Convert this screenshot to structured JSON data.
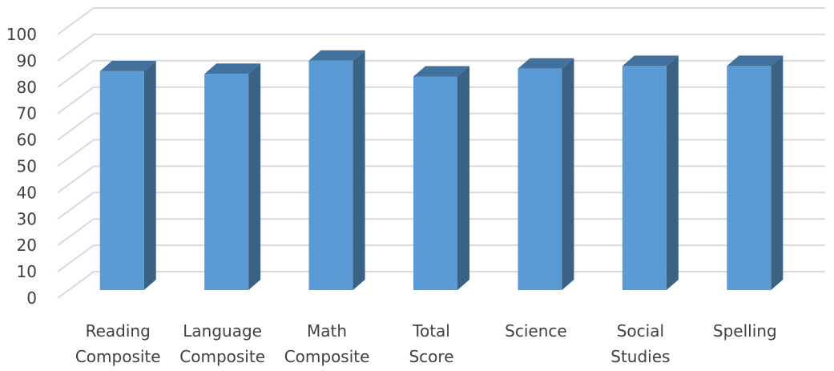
{
  "chart_data": {
    "type": "bar",
    "categories": [
      [
        "Reading",
        "Composite"
      ],
      [
        "Language",
        "Composite"
      ],
      [
        "Math",
        "Composite"
      ],
      [
        "Total",
        "Score"
      ],
      [
        "Science"
      ],
      [
        "Social",
        "Studies"
      ],
      [
        "Spelling"
      ]
    ],
    "values": [
      83,
      82,
      87,
      81,
      84,
      85,
      85
    ],
    "title": "",
    "xlabel": "",
    "ylabel": "",
    "ylim": [
      0,
      100
    ],
    "yticks": [
      "0",
      "10",
      "20",
      "30",
      "40",
      "50",
      "60",
      "70",
      "80",
      "90",
      "100"
    ],
    "grid": true,
    "legend": "none",
    "style": "3d-column",
    "colors": {
      "bar_front": "#5B9BD5",
      "bar_side": "#3A6285",
      "bar_top": "#41719C",
      "grid": "#D9D9D9",
      "text": "#404040"
    }
  }
}
